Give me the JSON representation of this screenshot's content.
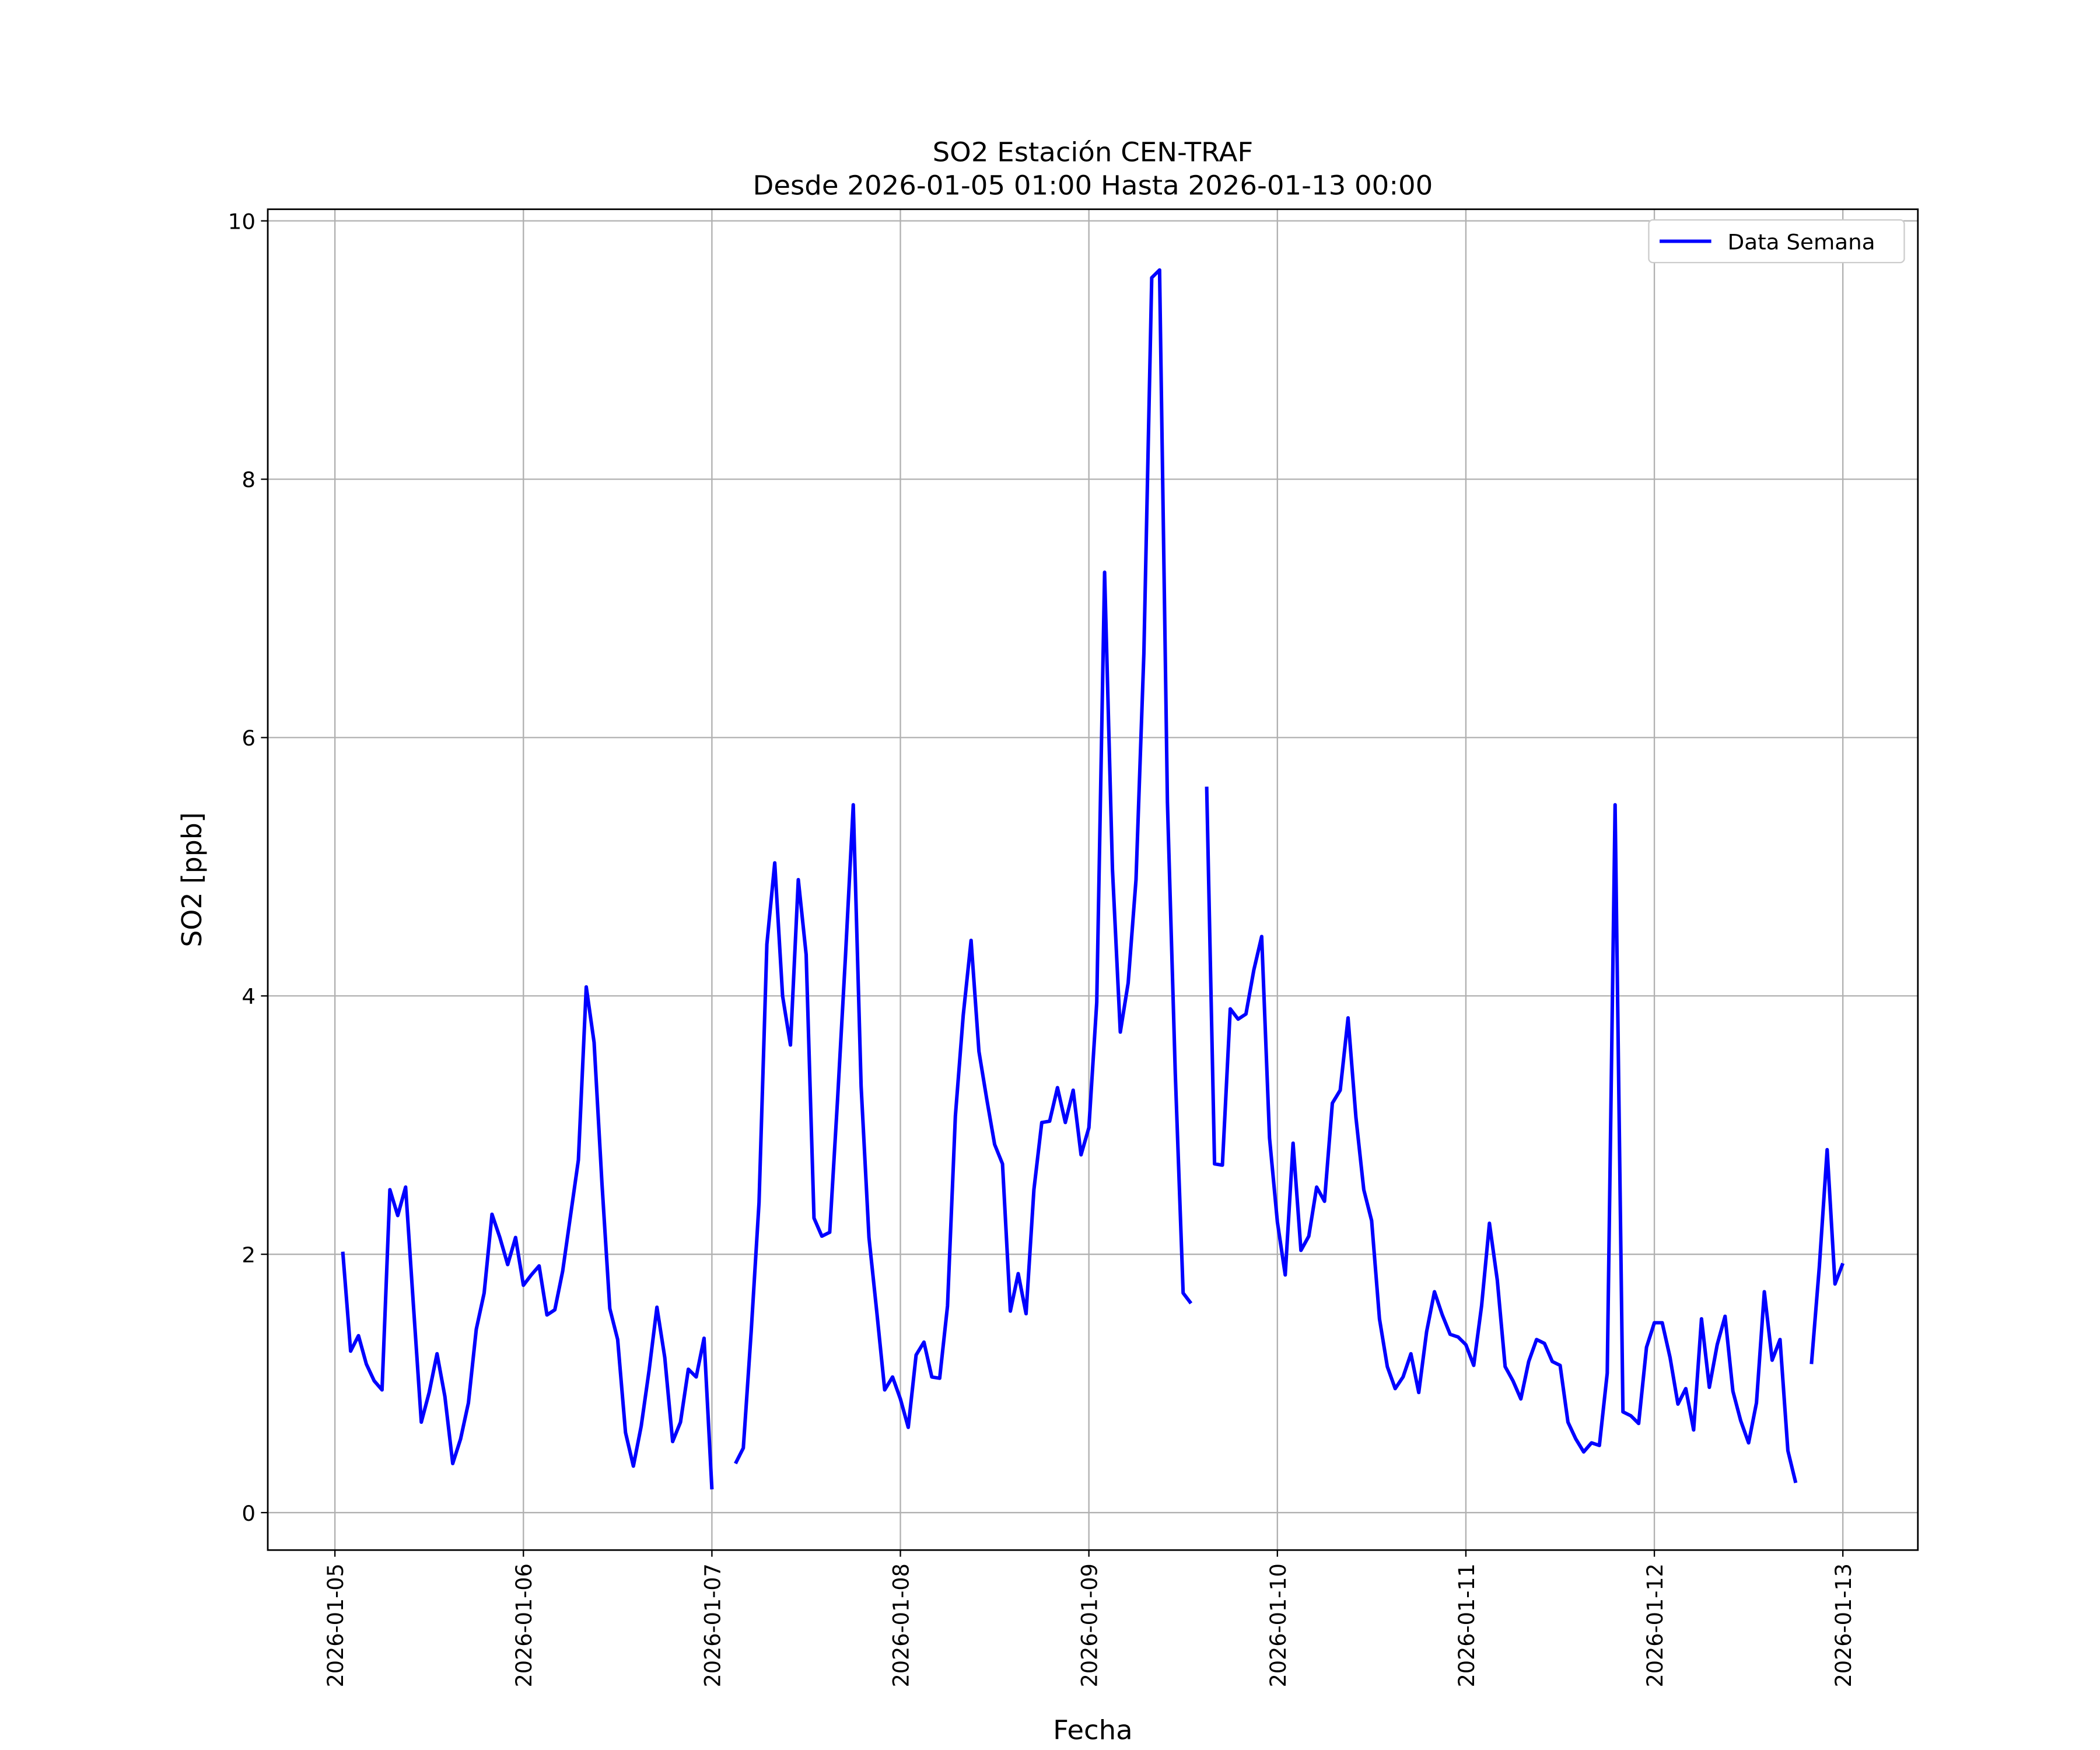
{
  "chart_data": {
    "type": "line",
    "title": "SO2 Estación CEN-TRAF",
    "subtitle": "Desde 2026-01-05 01:00 Hasta 2026-01-13 00:00",
    "x_label": "Fecha",
    "y_label": "SO2 [ppb]",
    "x": [
      "2026-01-05 01:00",
      "2026-01-05 02:00",
      "2026-01-05 03:00",
      "2026-01-05 04:00",
      "2026-01-05 05:00",
      "2026-01-05 06:00",
      "2026-01-05 07:00",
      "2026-01-05 08:00",
      "2026-01-05 09:00",
      "2026-01-05 10:00",
      "2026-01-05 11:00",
      "2026-01-05 12:00",
      "2026-01-05 13:00",
      "2026-01-05 14:00",
      "2026-01-05 15:00",
      "2026-01-05 16:00",
      "2026-01-05 17:00",
      "2026-01-05 18:00",
      "2026-01-05 19:00",
      "2026-01-05 20:00",
      "2026-01-05 21:00",
      "2026-01-05 22:00",
      "2026-01-05 23:00",
      "2026-01-06 00:00",
      "2026-01-06 01:00",
      "2026-01-06 02:00",
      "2026-01-06 03:00",
      "2026-01-06 04:00",
      "2026-01-06 05:00",
      "2026-01-06 06:00",
      "2026-01-06 07:00",
      "2026-01-06 08:00",
      "2026-01-06 09:00",
      "2026-01-06 10:00",
      "2026-01-06 11:00",
      "2026-01-06 12:00",
      "2026-01-06 13:00",
      "2026-01-06 14:00",
      "2026-01-06 15:00",
      "2026-01-06 16:00",
      "2026-01-06 17:00",
      "2026-01-06 18:00",
      "2026-01-06 19:00",
      "2026-01-06 20:00",
      "2026-01-06 21:00",
      "2026-01-06 22:00",
      "2026-01-06 23:00",
      "2026-01-07 00:00",
      "2026-01-07 01:00",
      "2026-01-07 02:00",
      "2026-01-07 03:00",
      "2026-01-07 04:00",
      "2026-01-07 05:00",
      "2026-01-07 06:00",
      "2026-01-07 07:00",
      "2026-01-07 08:00",
      "2026-01-07 09:00",
      "2026-01-07 10:00",
      "2026-01-07 11:00",
      "2026-01-07 12:00",
      "2026-01-07 13:00",
      "2026-01-07 14:00",
      "2026-01-07 15:00",
      "2026-01-07 16:00",
      "2026-01-07 17:00",
      "2026-01-07 18:00",
      "2026-01-07 19:00",
      "2026-01-07 20:00",
      "2026-01-07 21:00",
      "2026-01-07 22:00",
      "2026-01-07 23:00",
      "2026-01-08 00:00",
      "2026-01-08 01:00",
      "2026-01-08 02:00",
      "2026-01-08 03:00",
      "2026-01-08 04:00",
      "2026-01-08 05:00",
      "2026-01-08 06:00",
      "2026-01-08 07:00",
      "2026-01-08 08:00",
      "2026-01-08 09:00",
      "2026-01-08 10:00",
      "2026-01-08 11:00",
      "2026-01-08 12:00",
      "2026-01-08 13:00",
      "2026-01-08 14:00",
      "2026-01-08 15:00",
      "2026-01-08 16:00",
      "2026-01-08 17:00",
      "2026-01-08 18:00",
      "2026-01-08 19:00",
      "2026-01-08 20:00",
      "2026-01-08 21:00",
      "2026-01-08 22:00",
      "2026-01-08 23:00",
      "2026-01-09 00:00",
      "2026-01-09 01:00",
      "2026-01-09 02:00",
      "2026-01-09 03:00",
      "2026-01-09 04:00",
      "2026-01-09 05:00",
      "2026-01-09 06:00",
      "2026-01-09 07:00",
      "2026-01-09 08:00",
      "2026-01-09 09:00",
      "2026-01-09 10:00",
      "2026-01-09 11:00",
      "2026-01-09 12:00",
      "2026-01-09 13:00",
      "2026-01-09 14:00",
      "2026-01-09 15:00",
      "2026-01-09 16:00",
      "2026-01-09 17:00",
      "2026-01-09 18:00",
      "2026-01-09 19:00",
      "2026-01-09 20:00",
      "2026-01-09 21:00",
      "2026-01-09 22:00",
      "2026-01-09 23:00",
      "2026-01-10 00:00",
      "2026-01-10 01:00",
      "2026-01-10 02:00",
      "2026-01-10 03:00",
      "2026-01-10 04:00",
      "2026-01-10 05:00",
      "2026-01-10 06:00",
      "2026-01-10 07:00",
      "2026-01-10 08:00",
      "2026-01-10 09:00",
      "2026-01-10 10:00",
      "2026-01-10 11:00",
      "2026-01-10 12:00",
      "2026-01-10 13:00",
      "2026-01-10 14:00",
      "2026-01-10 15:00",
      "2026-01-10 16:00",
      "2026-01-10 17:00",
      "2026-01-10 18:00",
      "2026-01-10 19:00",
      "2026-01-10 20:00",
      "2026-01-10 21:00",
      "2026-01-10 22:00",
      "2026-01-10 23:00",
      "2026-01-11 00:00",
      "2026-01-11 01:00",
      "2026-01-11 02:00",
      "2026-01-11 03:00",
      "2026-01-11 04:00",
      "2026-01-11 05:00",
      "2026-01-11 06:00",
      "2026-01-11 07:00",
      "2026-01-11 08:00",
      "2026-01-11 09:00",
      "2026-01-11 10:00",
      "2026-01-11 11:00",
      "2026-01-11 12:00",
      "2026-01-11 13:00",
      "2026-01-11 14:00",
      "2026-01-11 15:00",
      "2026-01-11 16:00",
      "2026-01-11 17:00",
      "2026-01-11 18:00",
      "2026-01-11 19:00",
      "2026-01-11 20:00",
      "2026-01-11 21:00",
      "2026-01-11 22:00",
      "2026-01-11 23:00",
      "2026-01-12 00:00",
      "2026-01-12 01:00",
      "2026-01-12 02:00",
      "2026-01-12 03:00",
      "2026-01-12 04:00",
      "2026-01-12 05:00",
      "2026-01-12 06:00",
      "2026-01-12 07:00",
      "2026-01-12 08:00",
      "2026-01-12 09:00",
      "2026-01-12 10:00",
      "2026-01-12 11:00",
      "2026-01-12 12:00",
      "2026-01-12 13:00",
      "2026-01-12 14:00",
      "2026-01-12 15:00",
      "2026-01-12 16:00",
      "2026-01-12 17:00",
      "2026-01-12 18:00",
      "2026-01-12 19:00",
      "2026-01-12 20:00",
      "2026-01-12 21:00",
      "2026-01-12 22:00",
      "2026-01-12 23:00",
      "2026-01-13 00:00"
    ],
    "series": [
      {
        "name": "Data Semana",
        "color": "#0000ff",
        "values": [
          2.02,
          1.25,
          1.37,
          1.15,
          1.02,
          0.95,
          2.5,
          2.3,
          2.52,
          1.6,
          0.7,
          0.93,
          1.23,
          0.9,
          0.38,
          0.57,
          0.85,
          1.42,
          1.7,
          2.31,
          2.13,
          1.92,
          2.13,
          1.76,
          1.84,
          1.91,
          1.53,
          1.57,
          1.87,
          2.3,
          2.73,
          4.07,
          3.64,
          2.55,
          1.58,
          1.34,
          0.62,
          0.36,
          0.67,
          1.1,
          1.59,
          1.2,
          0.55,
          0.7,
          1.11,
          1.05,
          1.35,
          0.18,
          null,
          null,
          0.38,
          0.5,
          1.4,
          2.4,
          4.4,
          5.03,
          4.0,
          3.62,
          4.9,
          4.32,
          2.28,
          2.14,
          2.17,
          3.2,
          4.3,
          5.48,
          3.3,
          2.13,
          1.55,
          0.95,
          1.05,
          0.88,
          0.66,
          1.22,
          1.32,
          1.05,
          1.04,
          1.6,
          3.07,
          3.85,
          4.43,
          3.57,
          3.2,
          2.85,
          2.7,
          1.56,
          1.85,
          1.54,
          2.5,
          3.02,
          3.03,
          3.29,
          3.02,
          3.27,
          2.77,
          2.98,
          3.95,
          7.28,
          4.98,
          3.72,
          4.1,
          4.9,
          6.65,
          9.56,
          9.62,
          5.5,
          3.4,
          1.7,
          1.62,
          null,
          5.62,
          2.7,
          2.69,
          3.9,
          3.82,
          3.86,
          4.2,
          4.46,
          2.9,
          2.25,
          1.84,
          2.86,
          2.03,
          2.14,
          2.52,
          2.41,
          3.17,
          3.27,
          3.83,
          3.06,
          2.5,
          2.26,
          1.5,
          1.13,
          0.96,
          1.05,
          1.23,
          0.93,
          1.4,
          1.71,
          1.53,
          1.38,
          1.36,
          1.3,
          1.14,
          1.6,
          2.24,
          1.8,
          1.13,
          1.02,
          0.88,
          1.17,
          1.34,
          1.31,
          1.17,
          1.14,
          0.7,
          0.57,
          0.47,
          0.54,
          0.52,
          1.08,
          5.48,
          0.78,
          0.75,
          0.69,
          1.28,
          1.47,
          1.47,
          1.2,
          0.84,
          0.96,
          0.64,
          1.5,
          0.97,
          1.3,
          1.52,
          0.94,
          0.71,
          0.54,
          0.85,
          1.71,
          1.18,
          1.34,
          0.48,
          0.23,
          null,
          1.15,
          1.9,
          2.81,
          1.77,
          1.93
        ]
      }
    ],
    "xlim": [
      "2026-01-04 15:27",
      "2026-01-13 09:33"
    ],
    "xticks": [
      "2026-01-05",
      "2026-01-06",
      "2026-01-07",
      "2026-01-08",
      "2026-01-09",
      "2026-01-10",
      "2026-01-11",
      "2026-01-12",
      "2026-01-13"
    ],
    "ylim": [
      -0.29,
      10.09
    ],
    "yticks": [
      0,
      2,
      4,
      6,
      8,
      10
    ],
    "grid": true,
    "legend": "upper right"
  }
}
